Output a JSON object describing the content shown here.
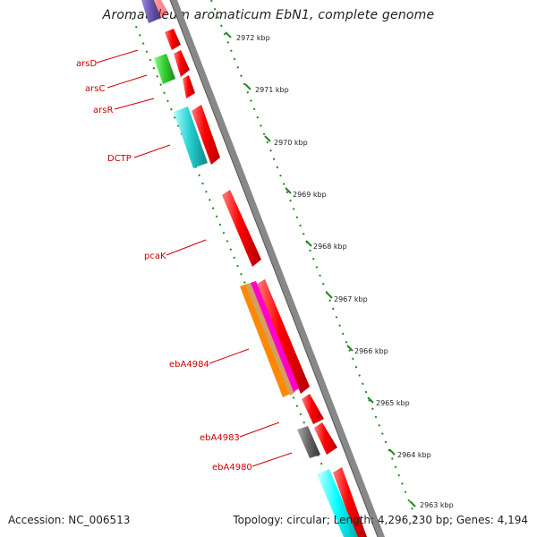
{
  "title": "Aromatoleum aromaticum EbN1, complete genome",
  "footer": {
    "accession": "Accession: NC_006513",
    "summary": "Topology: circular; Length: 4,296,230 bp; Genes: 4,194"
  },
  "ruler_ticks": [
    "2972 kbp",
    "2971 kbp",
    "2970 kbp",
    "2969 kbp",
    "2968 kbp",
    "2967 kbp",
    "2966 kbp",
    "2965 kbp",
    "2964 kbp",
    "2963 kbp"
  ],
  "gene_labels": [
    "arsD",
    "arsC",
    "arsR",
    "DCTP",
    "pcaK",
    "ebA4984",
    "ebA4983",
    "ebA4980"
  ],
  "colors": {
    "forward_cds": "#ff0000",
    "cog_green": "#33cc33",
    "cog_cyan": "#22cccc",
    "cog_purple": "#6655aa",
    "cog_orange": "#ff8800",
    "cog_magenta": "#ff00cc",
    "cog_gray": "#666666",
    "backbone": "#888888",
    "ruler": "#228822",
    "label": "#cc0000"
  }
}
